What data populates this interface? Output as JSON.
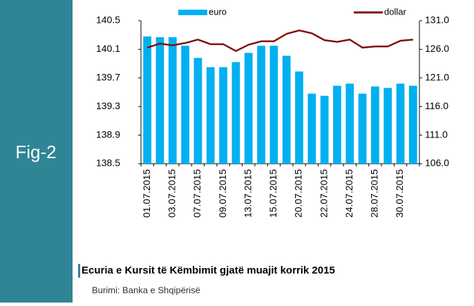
{
  "figure_label": "Fig-2",
  "chart_data": {
    "type": "bar-line",
    "categories": [
      "01.07.2015",
      null,
      "03.07.2015",
      null,
      "07.07.2015",
      null,
      "09.07.2015",
      null,
      "13.07.2015",
      null,
      "15.07.2015",
      null,
      "20.07.2015",
      null,
      "22.07.2015",
      null,
      "24.07.2015",
      null,
      "28.07.2015",
      null,
      "30.07.2015",
      null
    ],
    "series": [
      {
        "name": "euro",
        "color": "#00b0f0",
        "values": [
          140.28,
          140.27,
          140.27,
          140.15,
          139.98,
          139.85,
          139.85,
          139.92,
          140.05,
          140.15,
          140.15,
          140.01,
          139.79,
          139.48,
          139.45,
          139.59,
          139.62,
          139.48,
          139.58,
          139.56,
          139.62,
          139.59
        ]
      },
      {
        "name": "dollar",
        "color": "#7f1010",
        "axis": "y2",
        "values": [
          126.3,
          127.0,
          126.7,
          127.1,
          127.7,
          126.9,
          126.9,
          125.7,
          126.8,
          127.4,
          127.4,
          128.7,
          129.3,
          128.8,
          127.6,
          127.3,
          127.7,
          126.3,
          126.5,
          126.5,
          127.5,
          127.7
        ]
      }
    ],
    "ylim": [
      138.5,
      140.5
    ],
    "yticks": [
      138.5,
      138.9,
      139.3,
      139.7,
      140.1,
      140.5
    ],
    "y2lim": [
      106,
      131
    ],
    "y2ticks": [
      {
        "value": 106,
        "label": "106.0"
      },
      {
        "value": 111,
        "label": "111.0"
      },
      {
        "value": 116,
        "label": "116.0"
      },
      {
        "value": 121,
        "label": "121.0"
      },
      {
        "value": 126,
        "label": "126.0"
      },
      {
        "value": 131,
        "label": "131.0"
      }
    ],
    "legend": "top"
  },
  "caption": {
    "title": "Ecuria e Kursit të Këmbimit gjatë muajit korrik 2015",
    "source": "Burimi: Banka e Shqipërisë"
  }
}
